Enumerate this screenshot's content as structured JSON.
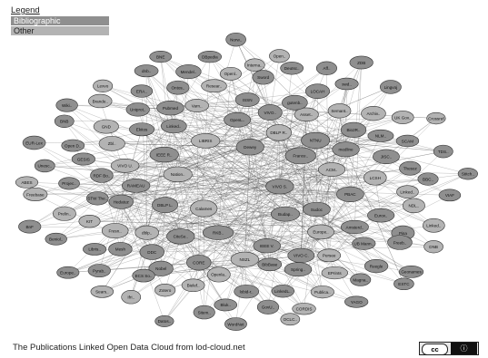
{
  "legend": {
    "title": "Legend",
    "items": [
      {
        "label": "Bibliographic",
        "color": "#8f8f8f"
      },
      {
        "label": "Other",
        "color": "#b3b3b3"
      }
    ]
  },
  "caption": "The Publications Linked Open Data Cloud from lod-cloud.net",
  "license": {
    "cc": "cc",
    "by": "ⓘ"
  },
  "node_labels": [
    "VIVO S.",
    "Calames",
    "Dewey",
    "Budap..",
    "Nation..",
    "France..",
    "RKB..",
    "LIBRIS",
    "Sudoc",
    "DBLP L.",
    "DBLP R..",
    "IEEE V.",
    "IEEE R..",
    "ACM..",
    "CiteSe..",
    "OpenL..",
    "Europe..",
    "RAMEAU",
    "NTNU",
    "NSZL",
    "Linked..",
    "PBAC",
    "dblp..",
    "VIVO..",
    "VIVO C.",
    "VIVO U.",
    "medline",
    "CORE",
    "Varn..",
    "Amsterd..",
    "Hedatuz",
    "Asset..",
    "BibBase",
    "Ekitos",
    "LCSH",
    "DDC",
    "ISSN",
    "Persee",
    "RDF Bo..",
    "Bio2R..",
    "Openla..",
    "Pubmed",
    "Eurov..",
    "Fresn..",
    "gutenb..",
    "Spring..",
    "Zbl..",
    "JISC..",
    "Nobel",
    "Resear..",
    "UB Mann..",
    "STW The..",
    "Semant..",
    "lobid-r..",
    "Uniprot..",
    "Linked..",
    "Mesh",
    "Sword",
    "EPrints",
    "GESIS",
    "NLM..",
    "Bielef..",
    "Ontos..",
    "Pisa",
    "KIT",
    "LOCAH",
    "LinkedL..",
    "GND",
    "Thesoz",
    "ECS So..",
    "Openl..",
    "Reegle",
    "Projec..",
    "Archiv..",
    "Bluk..",
    "ERA..",
    "NDL..",
    "Libris..",
    "Deutsc..",
    "Publica..",
    "Open D..",
    "SCAM",
    "Zotero",
    "Mendel..",
    "Freeb..",
    "Prelin..",
    "swd..",
    "GovU..",
    "Brande..",
    "BBC..",
    "Pyrab..",
    "Interna..",
    "Magna..",
    "Unesc..",
    "UK Gov..",
    "Sitem..",
    "dnb..",
    "Linked..",
    "Beniol..",
    "Aff..",
    "CORDIS",
    "BNB",
    "TDS..",
    "Ifri..",
    "DBpedia",
    "Geonames",
    "Freebase",
    "Lingvoj",
    "WordNet",
    "Lexvo",
    "VIAF",
    "Europe..",
    "Open..",
    "YAGO",
    "EUR-Lex",
    "Crossref",
    "Datos..",
    "BNE",
    "DNB",
    "BnF",
    "ZDB",
    "OCLC..",
    "Wiki..",
    "Stitch..",
    "Sears..",
    "Norw..",
    "ESTC",
    "ABES"
  ]
}
